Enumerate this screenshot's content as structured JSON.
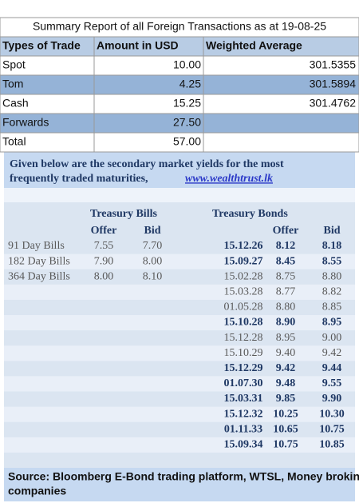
{
  "summary": {
    "title": "Summary Report of all Foreign Transactions as at 19-08-25",
    "headers": [
      "Types of Trade",
      "Amount in USD",
      "Weighted Average"
    ],
    "rows": [
      {
        "trade": "Spot",
        "amount": "10.00",
        "average": "301.5355",
        "highlight": false
      },
      {
        "trade": "Tom",
        "amount": "4.25",
        "average": "301.5894",
        "highlight": true
      },
      {
        "trade": "Cash",
        "amount": "15.25",
        "average": "301.4762",
        "highlight": false
      },
      {
        "trade": "Forwards",
        "amount": "27.50",
        "average": null,
        "highlight": true
      },
      {
        "trade": "Total",
        "amount": "57.00",
        "average": null,
        "highlight": false
      }
    ]
  },
  "yields": {
    "intro_lines": [
      "Given below are the secondary market yields for the most",
      "frequently traded maturities,"
    ],
    "link": "www.wealthtrust.lk",
    "group_headers": [
      "Treasury Bills",
      "Treasury Bonds"
    ],
    "col_headers": [
      "Offer",
      "Bid",
      "Offer",
      "Bid"
    ],
    "bills": [
      [
        "91 Day Bills",
        "7.55",
        "7.70"
      ],
      [
        "182 Day Bills",
        "7.90",
        "8.00"
      ],
      [
        "364 Day Bills",
        "8.00",
        "8.10"
      ]
    ],
    "bonds": [
      {
        "date": "15.12.26",
        "offer": "8.12",
        "bid": "8.18",
        "bold": true
      },
      {
        "date": "15.09.27",
        "offer": "8.45",
        "bid": "8.55",
        "bold": true
      },
      {
        "date": "15.02.28",
        "offer": "8.75",
        "bid": "8.80",
        "bold": false
      },
      {
        "date": "15.03.28",
        "offer": "8.77",
        "bid": "8.82",
        "bold": false
      },
      {
        "date": "01.05.28",
        "offer": "8.80",
        "bid": "8.85",
        "bold": false
      },
      {
        "date": "15.10.28",
        "offer": "8.90",
        "bid": "8.95",
        "bold": true
      },
      {
        "date": "15.12.28",
        "offer": "8.95",
        "bid": "9.00",
        "bold": false
      },
      {
        "date": "15.10.29",
        "offer": "9.40",
        "bid": "9.42",
        "bold": false
      },
      {
        "date": "15.12.29",
        "offer": "9.42",
        "bid": "9.44",
        "bold": true
      },
      {
        "date": "01.07.30",
        "offer": "9.48",
        "bid": "9.55",
        "bold": true
      },
      {
        "date": "15.03.31",
        "offer": "9.85",
        "bid": "9.90",
        "bold": true
      },
      {
        "date": "15.12.32",
        "offer": "10.25",
        "bid": "10.30",
        "bold": true
      },
      {
        "date": "01.11.33",
        "offer": "10.65",
        "bid": "10.75",
        "bold": true
      },
      {
        "date": "15.09.34",
        "offer": "10.75",
        "bid": "10.85",
        "bold": true
      }
    ],
    "source_lines": [
      "Source: Bloomberg E-Bond trading platform, WTSL, Money broking",
      "companies"
    ]
  }
}
